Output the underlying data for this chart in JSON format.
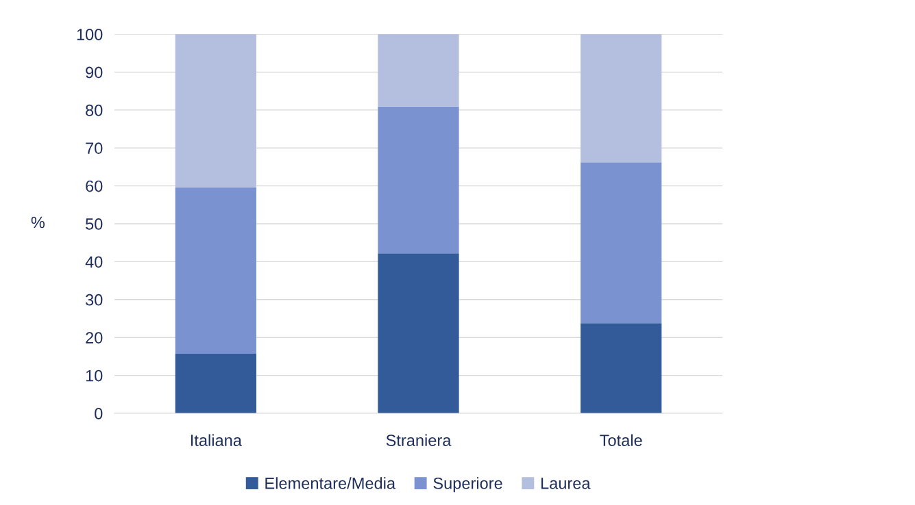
{
  "chart_data": {
    "type": "bar",
    "stacked": true,
    "ylabel": "%",
    "categories": [
      "Italiana",
      "Straniera",
      "Totale"
    ],
    "series": [
      {
        "name": "Elementare/Media",
        "color": "#335a99",
        "values": [
          15.7,
          42.2,
          23.8
        ]
      },
      {
        "name": "Superiore",
        "color": "#7a93d0",
        "values": [
          43.9,
          38.7,
          42.4
        ]
      },
      {
        "name": "Laurea",
        "color": "#b4bfe0",
        "values": [
          40.4,
          19.1,
          33.8
        ]
      }
    ],
    "ylim": [
      0,
      100
    ],
    "yticks": [
      0,
      10,
      20,
      30,
      40,
      50,
      60,
      70,
      80,
      90,
      100
    ],
    "grid": "y",
    "legend": "bottom"
  }
}
